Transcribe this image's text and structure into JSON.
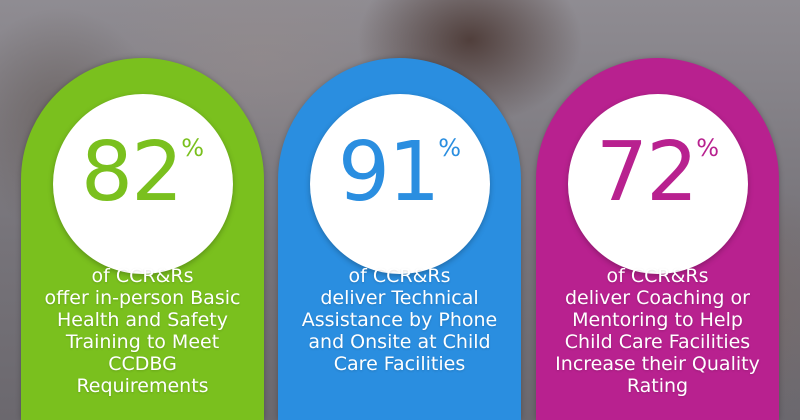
{
  "cards": [
    {
      "value": "82",
      "unit": "%",
      "color": "#7ac01e",
      "lines": [
        "of CCR&Rs",
        "offer in-person Basic",
        "Health and Safety",
        "Training to Meet",
        "CCDBG",
        "Requirements"
      ]
    },
    {
      "value": "91",
      "unit": "%",
      "color": "#2a8ee0",
      "lines": [
        "of CCR&Rs",
        "deliver Technical",
        "Assistance by Phone",
        "and Onsite at Child",
        "Care Facilities"
      ]
    },
    {
      "value": "72",
      "unit": "%",
      "color": "#b8218f",
      "lines": [
        "of CCR&Rs",
        "deliver Coaching or",
        "Mentoring to Help",
        "Child Care Facilities",
        "Increase their Quality",
        "Rating"
      ]
    }
  ]
}
